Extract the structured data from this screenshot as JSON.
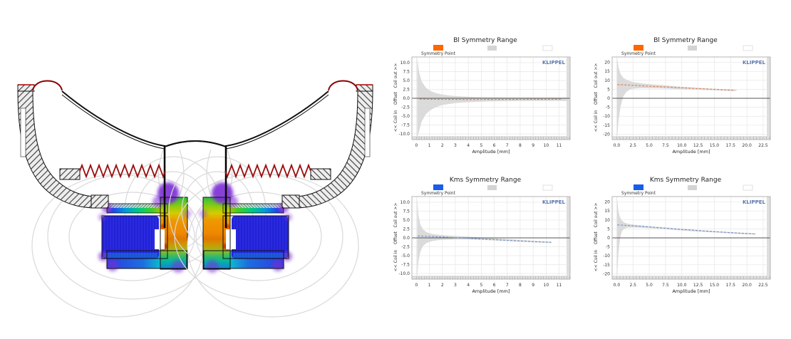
{
  "diagram": {
    "name": "loudspeaker-cross-section-with-magnetic-fea",
    "colors": {
      "surround_roll": "#8b0000",
      "spider": "#991111",
      "outline": "#111111",
      "field_lines": "#d9d9d9",
      "fea_palette": [
        "#7b2fd4",
        "#2a2ae2",
        "#00bbcc",
        "#22cc44",
        "#d4cc00",
        "#ee9900",
        "#cc2200"
      ]
    }
  },
  "charts_common": {
    "legend_point_label": "Symmetry Point",
    "watermark": "KLIPPEL",
    "xlabel": "Amplitude [mm]",
    "y_caption_top": "Coil out >>",
    "y_caption_mid": "Offset",
    "y_caption_bottom": "<< Coil in",
    "range_color": "#d9d9d9",
    "grid_color": "#e6e6e6",
    "zero_line_color": "#555555",
    "watermark_color": "#5b79b0",
    "legend_range_color": "#d4d4d4"
  },
  "chart_data": [
    {
      "type": "line",
      "title": "Bl Symmetry Range",
      "point_color": "#ff6600",
      "line_color": "#e57a50",
      "xlim": [
        -0.35,
        11.85
      ],
      "ylim": [
        -11.6,
        11.6
      ],
      "x_minor_step": 0.2,
      "xticks": [
        0,
        1,
        2,
        3,
        4,
        5,
        6,
        7,
        8,
        9,
        10,
        11
      ],
      "xtick_labels": [
        "0",
        "1",
        "2",
        "3",
        "4",
        "5",
        "6",
        "7",
        "8",
        "9",
        "10",
        "11"
      ],
      "yticks": [
        10,
        7.5,
        5,
        2.5,
        0,
        -2.5,
        -5,
        -7.5,
        -10
      ],
      "ytick_labels": [
        "10.0",
        "7.5",
        "5.0",
        "2.5",
        "0.0",
        "-2.5",
        "-5.0",
        "-7.5",
        "-10.0"
      ],
      "line": [
        [
          0.25,
          -0.22
        ],
        [
          1,
          -0.28
        ],
        [
          2,
          -0.32
        ],
        [
          4,
          -0.35
        ],
        [
          6,
          -0.33
        ],
        [
          8,
          -0.3
        ],
        [
          10,
          -0.28
        ],
        [
          11.2,
          -0.27
        ]
      ],
      "band": [
        [
          0.05,
          11.5
        ],
        [
          0.2,
          7.5
        ],
        [
          0.4,
          4.8
        ],
        [
          0.7,
          3.1
        ],
        [
          1,
          2.2
        ],
        [
          1.5,
          1.45
        ],
        [
          2,
          1.05
        ],
        [
          2.5,
          0.8
        ],
        [
          3,
          0.62
        ],
        [
          4,
          0.42
        ],
        [
          5,
          0.3
        ],
        [
          6,
          0.25
        ],
        [
          8,
          0.2
        ],
        [
          10,
          0.18
        ],
        [
          11.7,
          0.18
        ],
        [
          11.7,
          -0.75
        ],
        [
          10,
          -0.75
        ],
        [
          8,
          -0.78
        ],
        [
          6,
          -0.85
        ],
        [
          5,
          -0.95
        ],
        [
          4,
          -1.1
        ],
        [
          3,
          -1.35
        ],
        [
          2.5,
          -1.6
        ],
        [
          2,
          -1.9
        ],
        [
          1.5,
          -2.5
        ],
        [
          1,
          -3.5
        ],
        [
          0.7,
          -4.6
        ],
        [
          0.4,
          -6.6
        ],
        [
          0.2,
          -9.3
        ],
        [
          0.05,
          -11.5
        ]
      ]
    },
    {
      "type": "line",
      "title": "Bl Symmetry Range",
      "point_color": "#ff6600",
      "line_color": "#e57a50",
      "xlim": [
        -0.7,
        23.6
      ],
      "ylim": [
        -23,
        23
      ],
      "x_minor_step": 0.5,
      "xticks": [
        0,
        2.5,
        5,
        7.5,
        10,
        12.5,
        15,
        17.5,
        20,
        22.5
      ],
      "xtick_labels": [
        "0.0",
        "2.5",
        "5.0",
        "7.5",
        "10.0",
        "12.5",
        "15.0",
        "17.5",
        "20.0",
        "22.5"
      ],
      "yticks": [
        20,
        15,
        10,
        5,
        0,
        -5,
        -10,
        -15,
        -20
      ],
      "ytick_labels": [
        "20",
        "15",
        "10",
        "5",
        "0",
        "-5",
        "-10",
        "-15",
        "-20"
      ],
      "line": [
        [
          0.1,
          7.6
        ],
        [
          1,
          7.5
        ],
        [
          2.5,
          7.2
        ],
        [
          5,
          6.75
        ],
        [
          7.5,
          6.3
        ],
        [
          10,
          5.85
        ],
        [
          12.5,
          5.4
        ],
        [
          15,
          5.0
        ],
        [
          16.5,
          4.75
        ],
        [
          17.9,
          4.5
        ]
      ],
      "band": [
        [
          0.05,
          22.5
        ],
        [
          0.3,
          17
        ],
        [
          0.6,
          13.5
        ],
        [
          1,
          11.5
        ],
        [
          1.5,
          10.3
        ],
        [
          2,
          9.6
        ],
        [
          2.5,
          9.1
        ],
        [
          3.5,
          8.5
        ],
        [
          5,
          7.9
        ],
        [
          6.5,
          7.4
        ],
        [
          8,
          7.0
        ],
        [
          10,
          6.4
        ],
        [
          12.5,
          5.8
        ],
        [
          15,
          5.3
        ],
        [
          16.5,
          5.05
        ],
        [
          18.4,
          4.8
        ],
        [
          18.4,
          4.0
        ],
        [
          16.5,
          4.2
        ],
        [
          15,
          4.4
        ],
        [
          12.5,
          4.7
        ],
        [
          10,
          5.0
        ],
        [
          8,
          5.3
        ],
        [
          6.5,
          5.5
        ],
        [
          5,
          5.6
        ],
        [
          3.5,
          5.6
        ],
        [
          2.5,
          5.3
        ],
        [
          2,
          4.8
        ],
        [
          1.5,
          3.6
        ],
        [
          1,
          0.8
        ],
        [
          0.6,
          -4.5
        ],
        [
          0.3,
          -12
        ],
        [
          0.05,
          -22.5
        ]
      ]
    },
    {
      "type": "line",
      "title": "Kms Symmetry Range",
      "point_color": "#1a5ce8",
      "line_color": "#7090cc",
      "xlim": [
        -0.35,
        11.85
      ],
      "ylim": [
        -11.6,
        11.6
      ],
      "x_minor_step": 0.2,
      "xticks": [
        0,
        1,
        2,
        3,
        4,
        5,
        6,
        7,
        8,
        9,
        10,
        11
      ],
      "xtick_labels": [
        "0",
        "1",
        "2",
        "3",
        "4",
        "5",
        "6",
        "7",
        "8",
        "9",
        "10",
        "11"
      ],
      "yticks": [
        10,
        7.5,
        5,
        2.5,
        0,
        -2.5,
        -5,
        -7.5,
        -10
      ],
      "ytick_labels": [
        "10.0",
        "7.5",
        "5.0",
        "2.5",
        "0.0",
        "-2.5",
        "-5.0",
        "-7.5",
        "-10.0"
      ],
      "line": [
        [
          0.1,
          0.55
        ],
        [
          1,
          0.42
        ],
        [
          2,
          0.25
        ],
        [
          3,
          0.05
        ],
        [
          4,
          -0.12
        ],
        [
          5,
          -0.32
        ],
        [
          6,
          -0.52
        ],
        [
          7,
          -0.7
        ],
        [
          8,
          -0.88
        ],
        [
          9,
          -1.05
        ],
        [
          10.4,
          -1.25
        ]
      ],
      "band": [
        [
          0.05,
          11.5
        ],
        [
          0.15,
          6.5
        ],
        [
          0.3,
          3.8
        ],
        [
          0.5,
          2.4
        ],
        [
          0.8,
          1.55
        ],
        [
          1.2,
          1.1
        ],
        [
          1.6,
          0.9
        ],
        [
          2,
          0.78
        ],
        [
          3,
          0.55
        ],
        [
          4,
          0.35
        ],
        [
          5,
          0.12
        ],
        [
          6,
          -0.12
        ],
        [
          7,
          -0.35
        ],
        [
          8,
          -0.58
        ],
        [
          9,
          -0.8
        ],
        [
          10.4,
          -1.05
        ],
        [
          10.4,
          -1.45
        ],
        [
          9,
          -1.25
        ],
        [
          8,
          -1.08
        ],
        [
          7,
          -0.9
        ],
        [
          6,
          -0.72
        ],
        [
          5,
          -0.55
        ],
        [
          4,
          -0.45
        ],
        [
          3,
          -0.45
        ],
        [
          2,
          -0.55
        ],
        [
          1.6,
          -0.68
        ],
        [
          1.2,
          -0.92
        ],
        [
          0.8,
          -1.4
        ],
        [
          0.5,
          -2.3
        ],
        [
          0.3,
          -3.9
        ],
        [
          0.15,
          -6.8
        ],
        [
          0.05,
          -11.5
        ]
      ]
    },
    {
      "type": "line",
      "title": "Kms Symmetry Range",
      "point_color": "#1a5ce8",
      "line_color": "#7090cc",
      "xlim": [
        -0.7,
        23.6
      ],
      "ylim": [
        -23,
        23
      ],
      "x_minor_step": 0.5,
      "xticks": [
        0,
        2.5,
        5,
        7.5,
        10,
        12.5,
        15,
        17.5,
        20,
        22.5
      ],
      "xtick_labels": [
        "0.0",
        "2.5",
        "5.0",
        "7.5",
        "10.0",
        "12.5",
        "15.0",
        "17.5",
        "20.0",
        "22.5"
      ],
      "yticks": [
        20,
        15,
        10,
        5,
        0,
        -5,
        -10,
        -15,
        -20
      ],
      "ytick_labels": [
        "20",
        "15",
        "10",
        "5",
        "0",
        "-5",
        "-10",
        "-15",
        "-20"
      ],
      "line": [
        [
          0.1,
          7.2
        ],
        [
          1.2,
          7.0
        ],
        [
          2.5,
          6.7
        ],
        [
          5,
          6.1
        ],
        [
          7.5,
          5.4
        ],
        [
          10,
          4.7
        ],
        [
          12.5,
          4.1
        ],
        [
          15,
          3.5
        ],
        [
          17.5,
          2.9
        ],
        [
          19.5,
          2.5
        ],
        [
          21.2,
          2.2
        ]
      ],
      "band": [
        [
          0.05,
          22.5
        ],
        [
          0.25,
          15
        ],
        [
          0.5,
          11.5
        ],
        [
          0.8,
          9.6
        ],
        [
          1.2,
          8.5
        ],
        [
          1.7,
          7.9
        ],
        [
          2.5,
          7.4
        ],
        [
          4,
          6.9
        ],
        [
          5,
          6.5
        ],
        [
          7.5,
          5.8
        ],
        [
          10,
          5.1
        ],
        [
          12.5,
          4.4
        ],
        [
          15,
          3.8
        ],
        [
          17.5,
          3.2
        ],
        [
          19.5,
          2.8
        ],
        [
          21.4,
          2.5
        ],
        [
          21.4,
          1.9
        ],
        [
          19.5,
          2.1
        ],
        [
          17.5,
          2.5
        ],
        [
          15,
          3.0
        ],
        [
          12.5,
          3.5
        ],
        [
          10,
          4.1
        ],
        [
          7.5,
          4.8
        ],
        [
          5,
          5.4
        ],
        [
          4,
          5.6
        ],
        [
          2.5,
          5.8
        ],
        [
          1.7,
          5.7
        ],
        [
          1.2,
          5.2
        ],
        [
          0.8,
          3.6
        ],
        [
          0.5,
          -0.5
        ],
        [
          0.25,
          -9
        ],
        [
          0.05,
          -22.5
        ]
      ]
    }
  ]
}
